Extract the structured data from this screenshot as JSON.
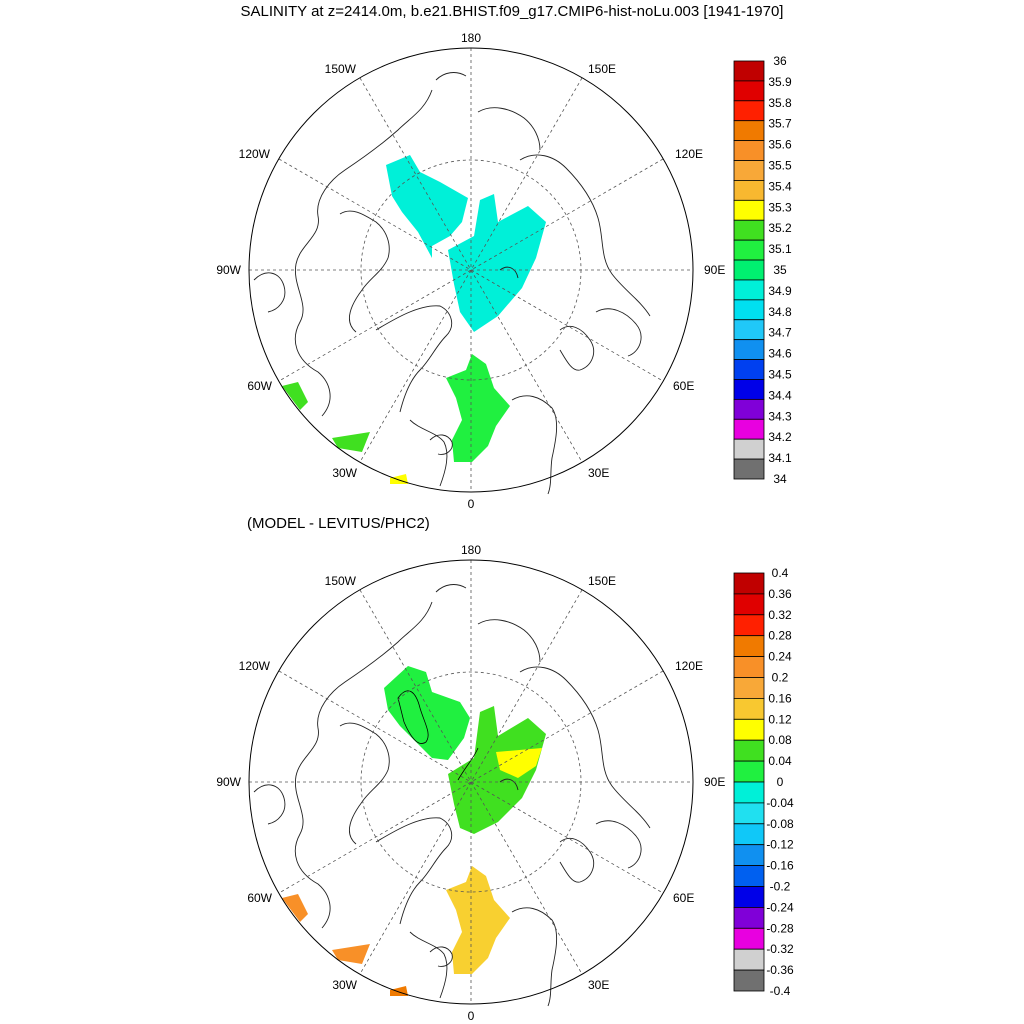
{
  "title": "SALINITY at z=2414.0m, b.e21.BHIST.f09_g17.CMIP6-hist-noLu.003 [1941-1970]",
  "subtitle": "(MODEL - LEVITUS/PHC2)",
  "longitude_labels": {
    "top": "180",
    "bottom": "0",
    "left": "90W",
    "right": "90E",
    "nw_upper": "150W",
    "nw_lower": "120W",
    "ne_upper": "150E",
    "ne_lower": "120E",
    "sw_upper": "60W",
    "sw_lower": "30W",
    "se_upper": "60E",
    "se_lower": "30E"
  },
  "colorbar1": {
    "labels": [
      "36",
      "35.9",
      "35.8",
      "35.7",
      "35.6",
      "35.5",
      "35.4",
      "35.3",
      "35.2",
      "35.1",
      "35",
      "34.9",
      "34.8",
      "34.7",
      "34.6",
      "34.5",
      "34.4",
      "34.3",
      "34.2",
      "34.1",
      "34"
    ],
    "colors": [
      "#c00000",
      "#e00000",
      "#ff2000",
      "#f07a00",
      "#f89028",
      "#f8a838",
      "#f8b830",
      "#ffff00",
      "#40e020",
      "#20f040",
      "#00f070",
      "#00f0d8",
      "#00e0f0",
      "#20c8f8",
      "#1090f0",
      "#0040f0",
      "#0000e8",
      "#8000d8",
      "#e800e0",
      "#d0d0d0",
      "#707070"
    ]
  },
  "colorbar2": {
    "labels": [
      "0.4",
      "0.36",
      "0.32",
      "0.28",
      "0.24",
      "0.2",
      "0.16",
      "0.12",
      "0.08",
      "0.04",
      "0",
      "-0.04",
      "-0.08",
      "-0.12",
      "-0.16",
      "-0.2",
      "-0.24",
      "-0.28",
      "-0.32",
      "-0.36",
      "-0.4"
    ],
    "colors": [
      "#c00000",
      "#e00000",
      "#ff2000",
      "#f07a00",
      "#f89028",
      "#f8a838",
      "#f8c830",
      "#ffff00",
      "#40e020",
      "#20f040",
      "#00f0d8",
      "#20e0f0",
      "#10c8f8",
      "#1090f0",
      "#0060f0",
      "#0000e8",
      "#8000d8",
      "#e800e0",
      "#d0d0d0",
      "#707070"
    ]
  },
  "map1_fills": {
    "canada_basin": "#00f0d8",
    "eurasian_basin": "#00f0d8",
    "greenland_sea": "#20f040",
    "labrador": "#40e020",
    "irminger": "#40e020",
    "south_tip": "#ffff00"
  },
  "map2_fills": {
    "canada_basin": "#20f040",
    "eurasian_basin": "#40e020",
    "nansen_patch": "#ffff00",
    "greenland_sea": "#f8d030",
    "labrador": "#f89028",
    "irminger": "#f89028",
    "south_tip": "#f07a00"
  }
}
